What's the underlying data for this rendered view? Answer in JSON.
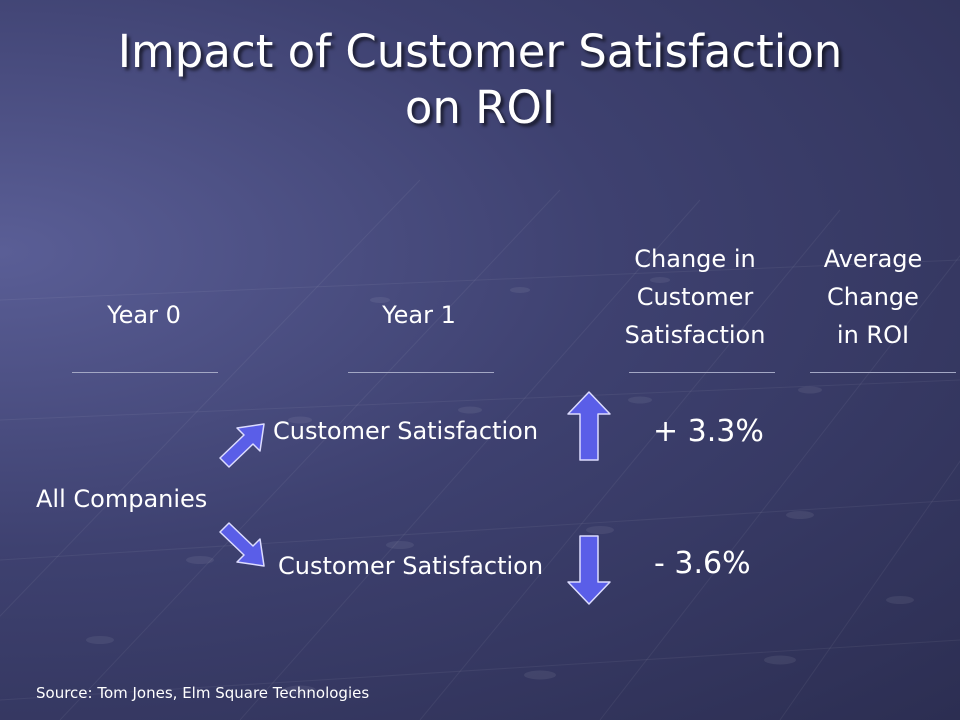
{
  "title": {
    "line1": "Impact of Customer Satisfaction",
    "line2": "on ROI"
  },
  "columns": {
    "year0": "Year 0",
    "year1": "Year 1",
    "change_sat": [
      "Change in",
      "Customer",
      "Satisfaction"
    ],
    "avg_roi": [
      "Average",
      "Change",
      "in ROI"
    ]
  },
  "rows": {
    "group": "All Companies",
    "up": {
      "label": "Customer Satisfaction",
      "change": "+ 3.3%",
      "icon": "up-arrow-icon"
    },
    "down": {
      "label": "Customer Satisfaction",
      "change": "- 3.6%",
      "icon": "down-arrow-icon"
    }
  },
  "source": "Source:  Tom Jones, Elm Square Technologies",
  "colors": {
    "background": "#3e4170",
    "arrow_fill": "#5a5ee8",
    "arrow_border": "#dcdcff",
    "rule": "#a3a7c4"
  }
}
